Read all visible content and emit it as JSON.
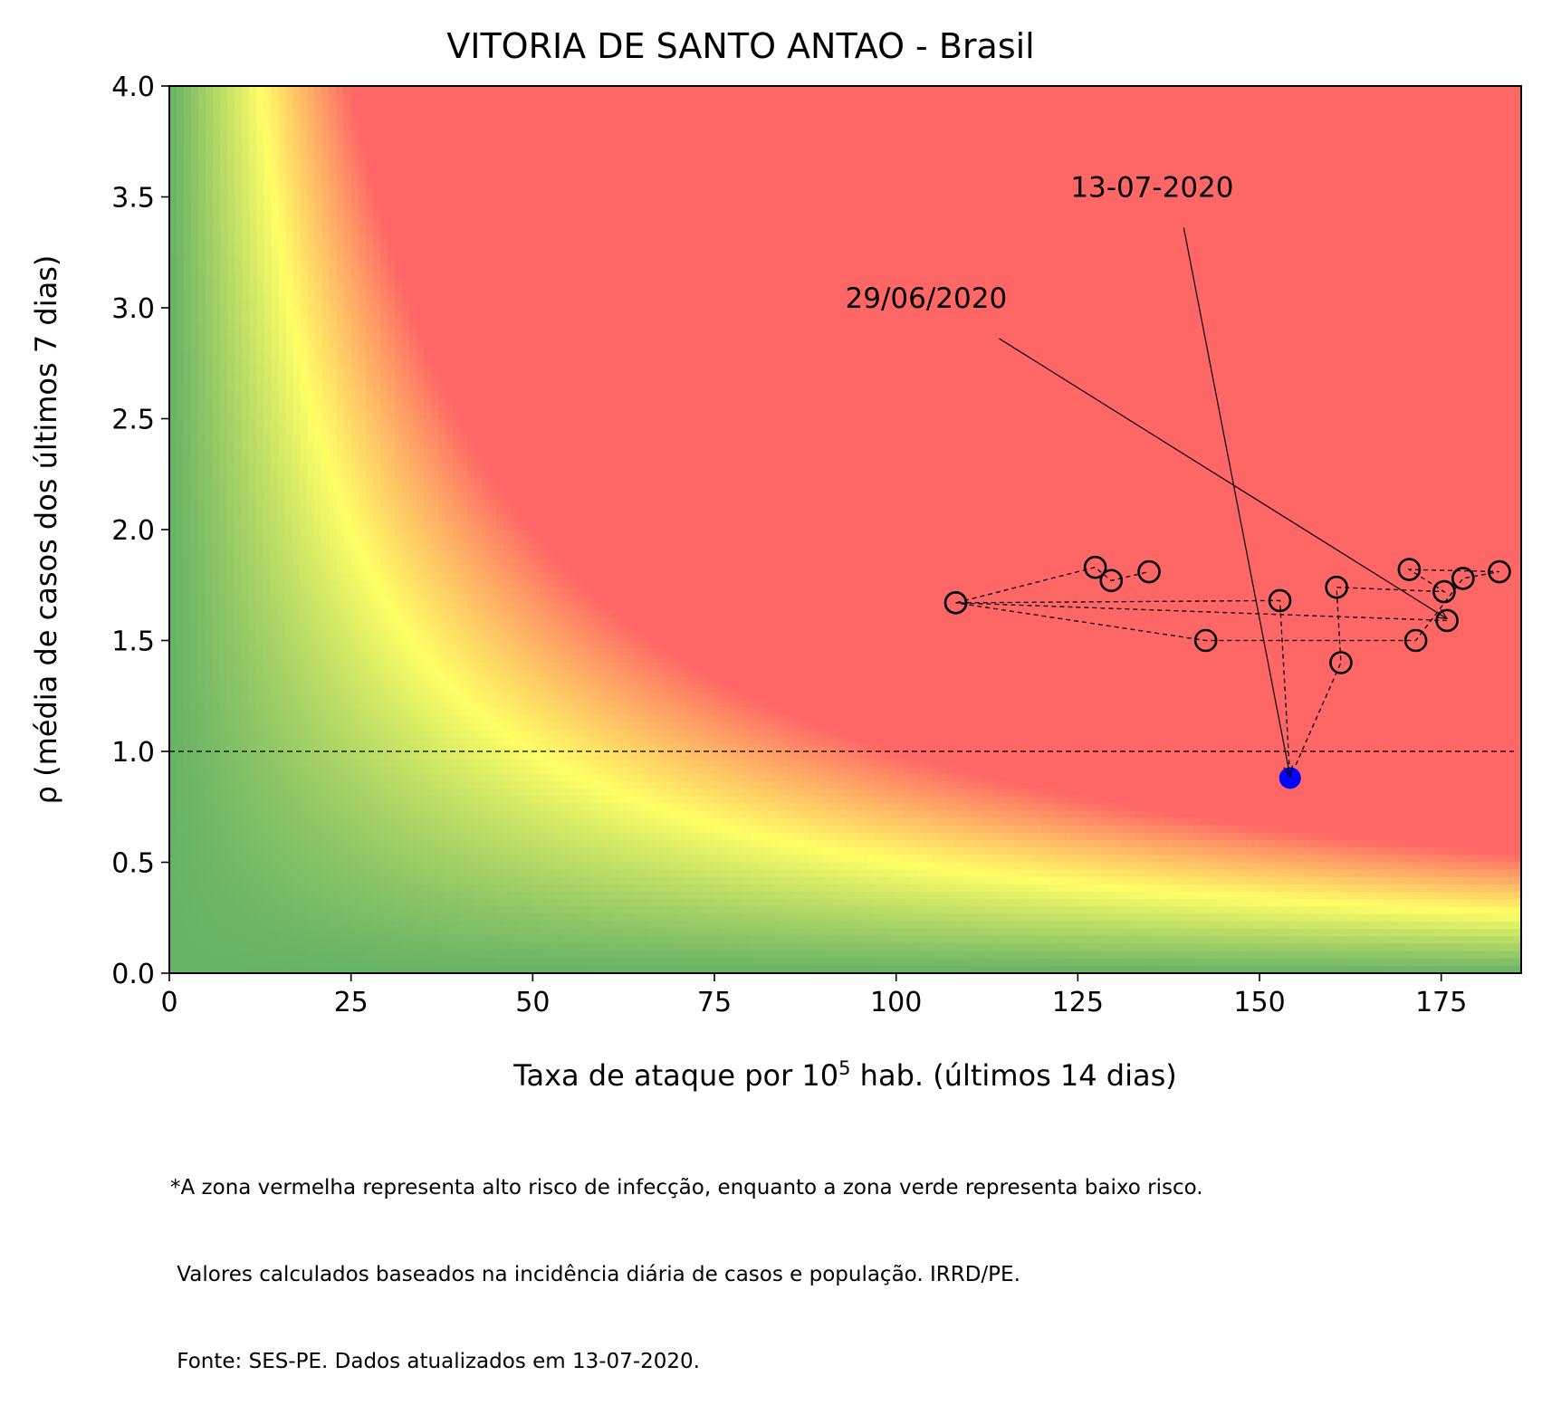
{
  "chart_data": {
    "type": "scatter",
    "title": "VITORIA DE SANTO ANTAO - Brasil",
    "xlabel_main": "Taxa de ataque por 10",
    "xlabel_sup": "5",
    "xlabel_rest": " hab. (últimos 14 dias)",
    "ylabel": "ρ (média de casos dos últimos 7 dias)",
    "xlim": [
      0,
      186
    ],
    "ylim": [
      0,
      4
    ],
    "x_ticks": [
      0,
      25,
      50,
      75,
      100,
      125,
      150,
      175
    ],
    "y_ticks": [
      0.0,
      0.5,
      1.0,
      1.5,
      2.0,
      2.5,
      3.0,
      3.5,
      4.0
    ],
    "y_tick_labels": [
      "0.0",
      "0.5",
      "1.0",
      "1.5",
      "2.0",
      "2.5",
      "3.0",
      "3.5",
      "4.0"
    ],
    "background": {
      "kind": "risk-heatmap",
      "quantity": "x * y",
      "yellow_at": 50,
      "red_from": 100,
      "colors": {
        "green": "#66b266",
        "yellow": "#ffff66",
        "red": "#ff6666"
      }
    },
    "reference_line": {
      "y": 1.0,
      "style": "dashed"
    },
    "series": [
      {
        "points": [
          {
            "x": 175.8,
            "y": 1.59
          },
          {
            "x": 108.2,
            "y": 1.67
          },
          {
            "x": 142.6,
            "y": 1.5
          },
          {
            "x": 171.5,
            "y": 1.5
          },
          {
            "x": 178.0,
            "y": 1.78
          },
          {
            "x": 183.0,
            "y": 1.81
          },
          {
            "x": 170.6,
            "y": 1.82
          },
          {
            "x": 175.4,
            "y": 1.72
          },
          {
            "x": 160.6,
            "y": 1.74
          },
          {
            "x": 161.2,
            "y": 1.4
          },
          {
            "x": 152.8,
            "y": 1.68
          },
          {
            "x": 108.2,
            "y": 1.67
          },
          {
            "x": 127.4,
            "y": 1.83
          },
          {
            "x": 129.6,
            "y": 1.77
          },
          {
            "x": 134.8,
            "y": 1.81
          }
        ],
        "marker": "open-circle",
        "color": "#000000"
      },
      {
        "points": [
          {
            "x": 154.2,
            "y": 0.88
          }
        ],
        "marker": "filled-circle",
        "color": "#0000ff"
      }
    ],
    "path_order": [
      {
        "x": 175.8,
        "y": 1.59
      },
      {
        "x": 108.2,
        "y": 1.67
      },
      {
        "x": 142.6,
        "y": 1.5
      },
      {
        "x": 171.5,
        "y": 1.5
      },
      {
        "x": 178.0,
        "y": 1.78
      },
      {
        "x": 183.0,
        "y": 1.81
      },
      {
        "x": 170.6,
        "y": 1.82
      },
      {
        "x": 175.4,
        "y": 1.72
      },
      {
        "x": 160.6,
        "y": 1.74
      },
      {
        "x": 161.2,
        "y": 1.4
      },
      {
        "x": 154.2,
        "y": 0.88
      },
      {
        "x": 152.8,
        "y": 1.68
      },
      {
        "x": 108.2,
        "y": 1.67
      },
      {
        "x": 127.4,
        "y": 1.83
      },
      {
        "x": 129.6,
        "y": 1.77
      },
      {
        "x": 134.8,
        "y": 1.81
      }
    ],
    "annotations": [
      {
        "text": "29/06/2020",
        "text_at": {
          "x": 93,
          "y": 3.0
        },
        "arrow_to": {
          "x": 175.8,
          "y": 1.59
        }
      },
      {
        "text": "13-07-2020",
        "text_at": {
          "x": 124,
          "y": 3.5
        },
        "arrow_to": {
          "x": 154.2,
          "y": 0.88
        }
      }
    ]
  },
  "footnote": {
    "line1": "*A zona vermelha representa alto risco de infecção, enquanto a zona verde representa baixo risco.",
    "line2": " Valores calculados baseados na incidência diária de casos e população. IRRD/PE.",
    "line3": " Fonte: SES-PE. Dados atualizados em 13-07-2020."
  }
}
